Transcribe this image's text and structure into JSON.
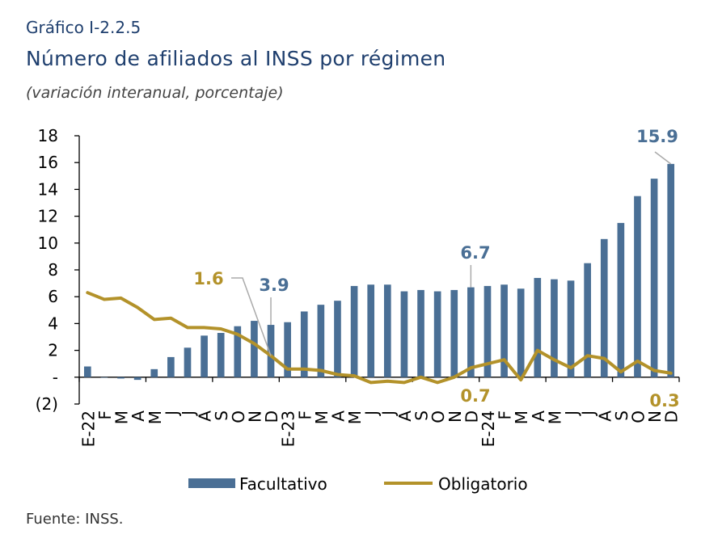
{
  "figure_label": "Gráfico I-2.2.5",
  "source": "Fuente: INSS.",
  "colors": {
    "bar": "#4a6f95",
    "line": "#b3922a",
    "title": "#1f3f6e"
  },
  "chart_data": {
    "type": "bar",
    "title": "Número de afiliados al INSS por régimen",
    "subtitle": "(variación interanual, porcentaje)",
    "xlabel": "",
    "ylabel": "",
    "ylim": [
      -2,
      18
    ],
    "yticks": [
      18,
      16,
      14,
      12,
      10,
      8,
      6,
      4,
      2,
      0,
      -2
    ],
    "ytick_labels": [
      "18",
      "16",
      "14",
      "12",
      "10",
      "8",
      "6",
      "4",
      "2",
      "-",
      "(2)"
    ],
    "categories": [
      "E-22",
      "F",
      "M",
      "A",
      "M",
      "J",
      "J",
      "A",
      "S",
      "O",
      "N",
      "D",
      "E-23",
      "F",
      "M",
      "A",
      "M",
      "J",
      "J",
      "A",
      "S",
      "O",
      "N",
      "D",
      "E-24",
      "F",
      "M",
      "A",
      "M",
      "J",
      "J",
      "A",
      "S",
      "O",
      "N",
      "D"
    ],
    "legend_position": "bottom",
    "series": [
      {
        "name": "Facultativo",
        "type": "bar",
        "values": [
          0.8,
          0.0,
          -0.1,
          -0.2,
          0.6,
          1.5,
          2.2,
          3.1,
          3.3,
          3.8,
          4.2,
          3.9,
          4.1,
          4.9,
          5.4,
          5.7,
          6.8,
          6.9,
          6.9,
          6.4,
          6.5,
          6.4,
          6.5,
          6.7,
          6.8,
          6.9,
          6.6,
          7.4,
          7.3,
          7.2,
          8.5,
          10.3,
          11.5,
          13.5,
          14.8,
          15.9
        ]
      },
      {
        "name": "Obligatorio",
        "type": "line",
        "values": [
          6.3,
          5.8,
          5.9,
          5.2,
          4.3,
          4.4,
          3.7,
          3.7,
          3.6,
          3.2,
          2.5,
          1.6,
          0.6,
          0.6,
          0.5,
          0.2,
          0.1,
          -0.4,
          -0.3,
          -0.4,
          0.0,
          -0.4,
          0.0,
          0.7,
          1.0,
          1.3,
          -0.2,
          2.0,
          1.3,
          0.7,
          1.6,
          1.4,
          0.4,
          1.2,
          0.5,
          0.3
        ]
      }
    ],
    "annotations": [
      {
        "text": "15.9",
        "series": "Facultativo",
        "index": 35,
        "color": "#4a6f95"
      },
      {
        "text": "6.7",
        "series": "Facultativo",
        "index": 23,
        "color": "#4a6f95"
      },
      {
        "text": "3.9",
        "series": "Facultativo",
        "index": 11,
        "color": "#4a6f95"
      },
      {
        "text": "1.6",
        "series": "Obligatorio",
        "index": 11,
        "color": "#b3922a"
      },
      {
        "text": "0.7",
        "series": "Obligatorio",
        "index": 23,
        "color": "#b3922a"
      },
      {
        "text": "0.3",
        "series": "Obligatorio",
        "index": 35,
        "color": "#b3922a"
      }
    ]
  }
}
